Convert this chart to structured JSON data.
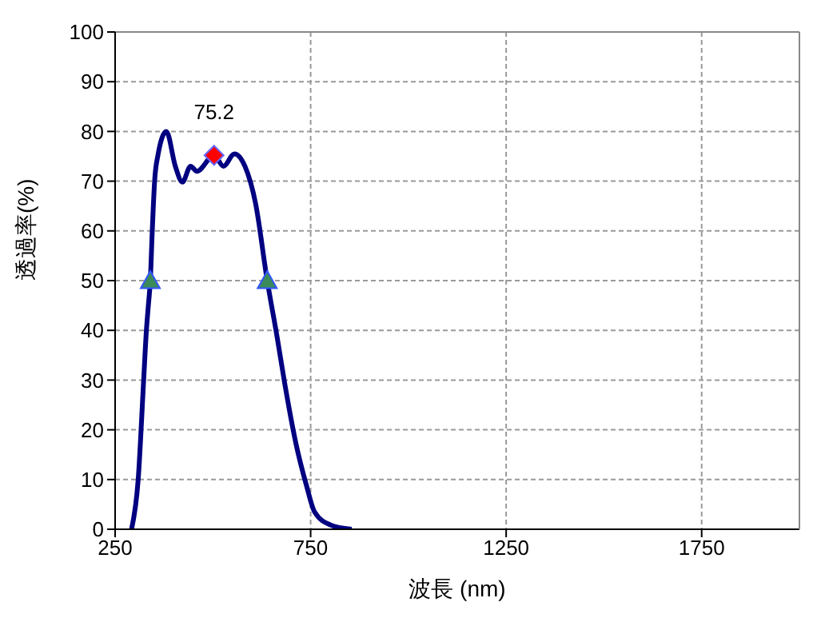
{
  "chart_data": {
    "type": "line",
    "xlabel": "波長 (nm)",
    "ylabel": "透過率(%)",
    "xlim": [
      250,
      2000
    ],
    "xticks": [
      250,
      750,
      1250,
      1750
    ],
    "ylim": [
      0,
      100
    ],
    "yticks": [
      0,
      10,
      20,
      30,
      40,
      50,
      60,
      70,
      80,
      90,
      100
    ],
    "grid": true,
    "legend": false,
    "series": [
      {
        "color": "#000080",
        "marker": "none",
        "x": [
          292,
          309,
          323,
          330,
          335,
          340,
          345,
          351,
          359,
          381,
          404,
          422,
          443,
          459,
          503,
          527,
          555,
          582,
          609,
          639,
          664,
          684,
          712,
          739,
          760,
          800,
          855
        ],
        "values": [
          0,
          10,
          30,
          40,
          45,
          50,
          60,
          70,
          75,
          80,
          73,
          69.8,
          73,
          72,
          75.2,
          73,
          75.5,
          73,
          65.6,
          50,
          38.8,
          29.2,
          17.4,
          8.9,
          3.5,
          0.9,
          0
        ]
      },
      {
        "type": "scatter",
        "color": "#3a8a5a",
        "marker": "triangle",
        "x": [
          340,
          639
        ],
        "values": [
          50,
          50
        ]
      },
      {
        "type": "scatter",
        "color": "#ff0000",
        "marker": "diamond",
        "x": [
          503
        ],
        "values": [
          75.2
        ],
        "value_labels": [
          "75.2"
        ]
      }
    ]
  }
}
